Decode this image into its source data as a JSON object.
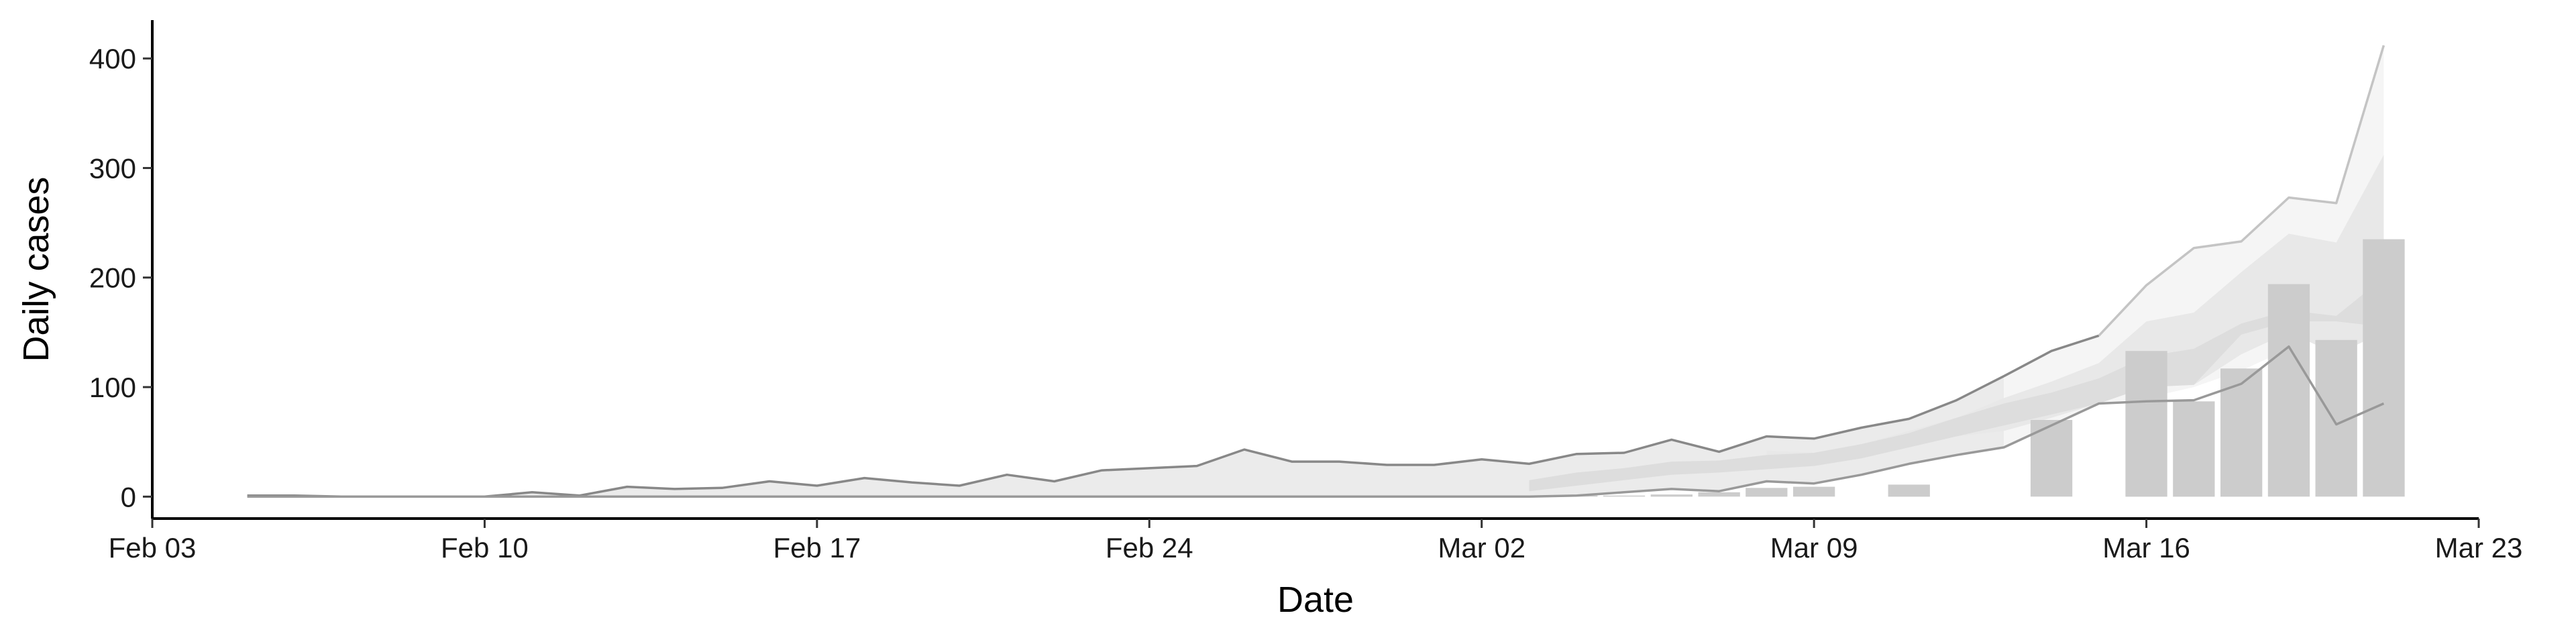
{
  "chart_data": {
    "type": "bar",
    "xlabel": "Date",
    "ylabel": "Daily cases",
    "xlim": [
      "2020-02-03",
      "2020-03-23"
    ],
    "ylim": [
      -20,
      435
    ],
    "x_ticks": [
      {
        "date": "2020-02-03",
        "label": "Feb 03"
      },
      {
        "date": "2020-02-10",
        "label": "Feb 10"
      },
      {
        "date": "2020-02-17",
        "label": "Feb 17"
      },
      {
        "date": "2020-02-24",
        "label": "Feb 24"
      },
      {
        "date": "2020-03-02",
        "label": "Mar 02"
      },
      {
        "date": "2020-03-09",
        "label": "Mar 09"
      },
      {
        "date": "2020-03-16",
        "label": "Mar 16"
      },
      {
        "date": "2020-03-23",
        "label": "Mar 23"
      }
    ],
    "y_ticks": [
      {
        "value": 0,
        "label": "0"
      },
      {
        "value": 100,
        "label": "100"
      },
      {
        "value": 200,
        "label": "200"
      },
      {
        "value": 300,
        "label": "300"
      },
      {
        "value": 400,
        "label": "400"
      }
    ],
    "grid": false,
    "bars": {
      "color": "#cccccc",
      "dates": [
        "2020-03-04",
        "2020-03-05",
        "2020-03-06",
        "2020-03-07",
        "2020-03-08",
        "2020-03-09",
        "2020-03-11",
        "2020-03-14",
        "2020-03-16",
        "2020-03-17",
        "2020-03-18",
        "2020-03-19",
        "2020-03-20",
        "2020-03-21"
      ],
      "values": [
        1,
        1,
        2,
        4,
        8,
        9,
        11,
        70,
        133,
        87,
        117,
        194,
        143,
        235
      ]
    },
    "bands": [
      {
        "color": "#ebebeb",
        "dates": [
          "2020-02-05",
          "2020-02-06",
          "2020-02-07",
          "2020-02-08",
          "2020-02-09",
          "2020-02-10",
          "2020-02-11",
          "2020-02-12",
          "2020-02-13",
          "2020-02-14",
          "2020-02-15",
          "2020-02-16",
          "2020-02-17",
          "2020-02-18",
          "2020-02-19",
          "2020-02-20",
          "2020-02-21",
          "2020-02-22",
          "2020-02-23",
          "2020-02-24",
          "2020-02-25",
          "2020-02-26",
          "2020-02-27",
          "2020-02-28",
          "2020-02-29",
          "2020-03-01",
          "2020-03-02",
          "2020-03-03",
          "2020-03-04",
          "2020-03-05",
          "2020-03-06",
          "2020-03-07",
          "2020-03-08",
          "2020-03-09",
          "2020-03-10",
          "2020-03-11",
          "2020-03-12",
          "2020-03-13"
        ],
        "lower": [
          0,
          0,
          0,
          0,
          0,
          0,
          0,
          0,
          0,
          0,
          0,
          0,
          0,
          0,
          0,
          0,
          0,
          0,
          0,
          0,
          0,
          0,
          0,
          0,
          0,
          0,
          0,
          0,
          1,
          4,
          7,
          5,
          14,
          12,
          20,
          30,
          38,
          45
        ],
        "upper": [
          1,
          1,
          0,
          0,
          0,
          0,
          4,
          1,
          9,
          7,
          8,
          14,
          10,
          17,
          13,
          10,
          20,
          14,
          24,
          26,
          28,
          43,
          32,
          32,
          29,
          29,
          34,
          30,
          39,
          40,
          52,
          41,
          55,
          53,
          63,
          71,
          88,
          110
        ]
      },
      {
        "color": "#f5f5f5",
        "dates": [
          "2020-03-13",
          "2020-03-14",
          "2020-03-15",
          "2020-03-16",
          "2020-03-17",
          "2020-03-18",
          "2020-03-19",
          "2020-03-20",
          "2020-03-21"
        ],
        "lower": [
          45,
          65,
          85,
          90,
          100,
          115,
          135,
          150,
          155
        ],
        "upper": [
          110,
          133,
          147,
          193,
          227,
          233,
          273,
          268,
          412
        ]
      },
      {
        "color": "#e8e8e8",
        "dates": [
          "2020-03-08",
          "2020-03-09",
          "2020-03-10",
          "2020-03-11",
          "2020-03-12",
          "2020-03-13",
          "2020-03-14",
          "2020-03-15",
          "2020-03-16",
          "2020-03-17",
          "2020-03-18",
          "2020-03-19",
          "2020-03-20",
          "2020-03-21"
        ],
        "lower": [
          30,
          28,
          35,
          45,
          55,
          60,
          72,
          85,
          100,
          102,
          130,
          150,
          130,
          150
        ],
        "upper": [
          42,
          40,
          48,
          60,
          72,
          90,
          105,
          122,
          160,
          168,
          205,
          240,
          232,
          312
        ]
      },
      {
        "color": "#dddddd",
        "dates": [
          "2020-03-03",
          "2020-03-04",
          "2020-03-05",
          "2020-03-06",
          "2020-03-07",
          "2020-03-08",
          "2020-03-09",
          "2020-03-10",
          "2020-03-11",
          "2020-03-12",
          "2020-03-13",
          "2020-03-14",
          "2020-03-15",
          "2020-03-16",
          "2020-03-17",
          "2020-03-18",
          "2020-03-19",
          "2020-03-20",
          "2020-03-21"
        ],
        "lower": [
          5,
          10,
          15,
          20,
          22,
          25,
          28,
          35,
          45,
          55,
          65,
          75,
          85,
          100,
          102,
          148,
          160,
          160,
          155
        ],
        "upper": [
          15,
          22,
          26,
          32,
          33,
          38,
          40,
          48,
          58,
          72,
          85,
          95,
          108,
          128,
          135,
          158,
          170,
          165,
          200
        ]
      }
    ],
    "lines": [
      {
        "color": "#888888",
        "dates": [
          "2020-02-05",
          "2020-02-06",
          "2020-02-07",
          "2020-02-08",
          "2020-02-09",
          "2020-02-10",
          "2020-02-11",
          "2020-02-12",
          "2020-02-13",
          "2020-02-14",
          "2020-02-15",
          "2020-02-16",
          "2020-02-17",
          "2020-02-18",
          "2020-02-19",
          "2020-02-20",
          "2020-02-21",
          "2020-02-22",
          "2020-02-23",
          "2020-02-24",
          "2020-02-25",
          "2020-02-26",
          "2020-02-27",
          "2020-02-28",
          "2020-02-29",
          "2020-03-01",
          "2020-03-02",
          "2020-03-03",
          "2020-03-04",
          "2020-03-05",
          "2020-03-06",
          "2020-03-07",
          "2020-03-08",
          "2020-03-09",
          "2020-03-10",
          "2020-03-11",
          "2020-03-12",
          "2020-03-13",
          "2020-03-14",
          "2020-03-15"
        ],
        "values": [
          1,
          1,
          0,
          0,
          0,
          0,
          4,
          1,
          9,
          7,
          8,
          14,
          10,
          17,
          13,
          10,
          20,
          14,
          24,
          26,
          28,
          43,
          32,
          32,
          29,
          29,
          34,
          30,
          39,
          40,
          52,
          41,
          55,
          53,
          63,
          71,
          88,
          110,
          133,
          147
        ]
      },
      {
        "color": "#999999",
        "dates": [
          "2020-02-05",
          "2020-02-06",
          "2020-02-07",
          "2020-02-08",
          "2020-02-09",
          "2020-02-10",
          "2020-02-11",
          "2020-02-12",
          "2020-02-13",
          "2020-02-14",
          "2020-02-15",
          "2020-02-16",
          "2020-02-17",
          "2020-02-18",
          "2020-02-19",
          "2020-02-20",
          "2020-02-21",
          "2020-02-22",
          "2020-02-23",
          "2020-02-24",
          "2020-02-25",
          "2020-02-26",
          "2020-02-27",
          "2020-02-28",
          "2020-02-29",
          "2020-03-01",
          "2020-03-02",
          "2020-03-03",
          "2020-03-04",
          "2020-03-05",
          "2020-03-06",
          "2020-03-07",
          "2020-03-08",
          "2020-03-09",
          "2020-03-10",
          "2020-03-11",
          "2020-03-12",
          "2020-03-13",
          "2020-03-14",
          "2020-03-15",
          "2020-03-16",
          "2020-03-17",
          "2020-03-18",
          "2020-03-19",
          "2020-03-20",
          "2020-03-21"
        ],
        "values": [
          0,
          0,
          0,
          0,
          0,
          0,
          0,
          0,
          0,
          0,
          0,
          0,
          0,
          0,
          0,
          0,
          0,
          0,
          0,
          0,
          0,
          0,
          0,
          0,
          0,
          0,
          0,
          0,
          1,
          4,
          7,
          5,
          14,
          12,
          20,
          30,
          38,
          45,
          65,
          85,
          87,
          88,
          103,
          137,
          66,
          85
        ]
      },
      {
        "color": "#c4c4c4",
        "dates": [
          "2020-03-15",
          "2020-03-16",
          "2020-03-17",
          "2020-03-18",
          "2020-03-19",
          "2020-03-20",
          "2020-03-21"
        ],
        "values": [
          147,
          193,
          227,
          233,
          273,
          268,
          412
        ]
      }
    ]
  }
}
